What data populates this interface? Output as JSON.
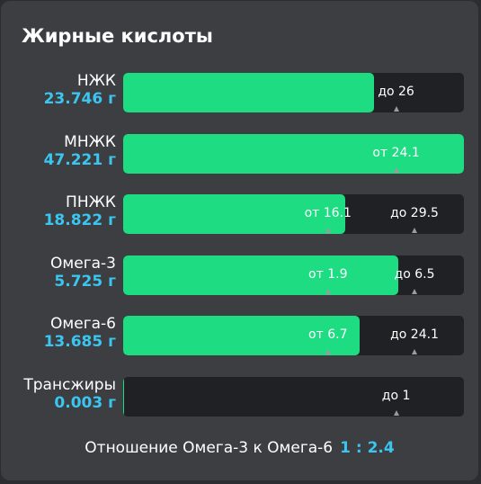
{
  "title": "Жирные кислоты",
  "rows": [
    {
      "name": "НЖК",
      "value": "23.746 г",
      "fill_pct": 73.6,
      "markers": [
        {
          "text": "до 26",
          "pos_pct": 80.1
        }
      ]
    },
    {
      "name": "МНЖК",
      "value": "47.221 г",
      "fill_pct": 100,
      "markers": [
        {
          "text": "от 24.1",
          "pos_pct": 80.1
        }
      ]
    },
    {
      "name": "ПНЖК",
      "value": "18.822 г",
      "fill_pct": 65.2,
      "markers": [
        {
          "text": "от 16.1",
          "pos_pct": 60.1
        },
        {
          "text": "до 29.5",
          "pos_pct": 85.5
        }
      ]
    },
    {
      "name": "Омега-3",
      "value": "5.725 г",
      "fill_pct": 80.7,
      "markers": [
        {
          "text": "от 1.9",
          "pos_pct": 60.1
        },
        {
          "text": "до 6.5",
          "pos_pct": 85.5
        }
      ]
    },
    {
      "name": "Омега-6",
      "value": "13.685 г",
      "fill_pct": 69.4,
      "markers": [
        {
          "text": "от 6.7",
          "pos_pct": 60.1
        },
        {
          "text": "до 24.1",
          "pos_pct": 85.5
        }
      ]
    },
    {
      "name": "Трансжиры",
      "value": "0.003 г",
      "fill_pct": 0.3,
      "markers": [
        {
          "text": "до 1",
          "pos_pct": 80.1
        }
      ]
    }
  ],
  "ratio": {
    "label": "Отношение Омега-3 к Омега-6",
    "value": "1 : 2.4"
  },
  "colors": {
    "fill": "#1ddc82",
    "value_text": "#3ac6f0",
    "track": "#202124"
  }
}
